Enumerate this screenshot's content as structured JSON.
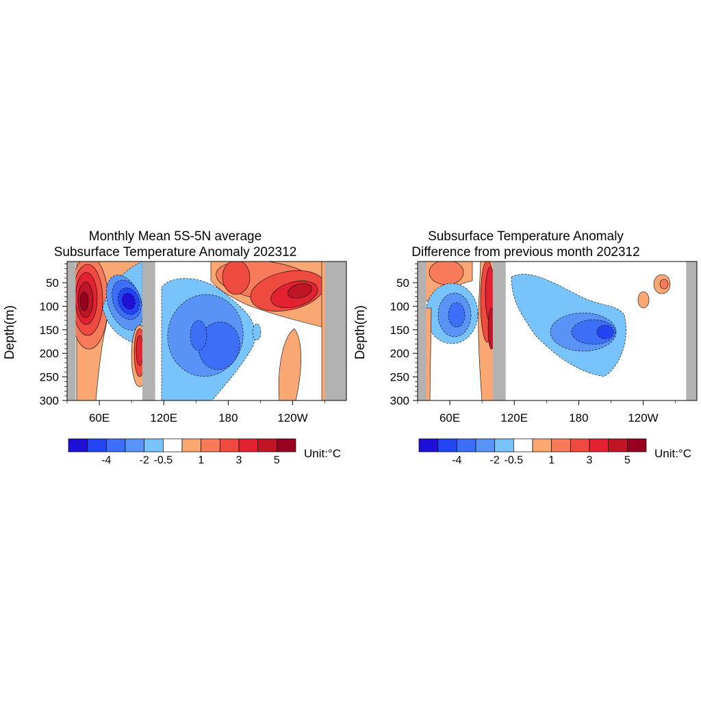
{
  "figure": {
    "panels": [
      {
        "title_line1": "Monthly Mean 5S-5N average",
        "title_line2": "Subsurface Temperature Anomaly 202312"
      },
      {
        "title_line1": "Subsurface Temperature Anomaly",
        "title_line2": "Difference from previous month 202312"
      }
    ],
    "colorbar": {
      "colors": [
        "#1f10d8",
        "#2244f2",
        "#3c6ff5",
        "#5a93f6",
        "#78c3fb",
        "#ffffff",
        "#fba774",
        "#f77a5a",
        "#ef4a40",
        "#e32231",
        "#c01527",
        "#98001f"
      ],
      "tick_labels": [
        "-4",
        "-2",
        "-0.5",
        "1",
        "3",
        "5"
      ],
      "unit_label": "Unit:°C"
    }
  },
  "chart_data": [
    {
      "type": "heatmap",
      "title": "Monthly Mean 5S-5N average Subsurface Temperature Anomaly 202312",
      "ylabel": "Depth(m)",
      "xlabel": "",
      "x_ticklabels": [
        "60E",
        "120E",
        "180",
        "120W"
      ],
      "x_ticks_deg_east": [
        60,
        120,
        180,
        240
      ],
      "xlim_deg_east": [
        30,
        290
      ],
      "y_ticklabels": [
        "50",
        "100",
        "150",
        "200",
        "250",
        "300"
      ],
      "y_ticks": [
        50,
        100,
        150,
        200,
        250,
        300
      ],
      "ylim": [
        300,
        5
      ],
      "units": "°C",
      "land_mask_lon_deg_east": [
        [
          30,
          38
        ],
        [
          100,
          112
        ],
        [
          270,
          290
        ]
      ],
      "anomaly_features": [
        {
          "lon_center": 50,
          "depth_center": 100,
          "value": 5,
          "sign": "warm"
        },
        {
          "lon_center": 85,
          "depth_center": 90,
          "value": -4,
          "sign": "cold"
        },
        {
          "lon_center": 160,
          "depth_center": 180,
          "value": -2,
          "sign": "cold"
        },
        {
          "lon_center": 190,
          "depth_center": 40,
          "value": 2,
          "sign": "warm"
        },
        {
          "lon_center": 245,
          "depth_center": 80,
          "value": 4,
          "sign": "warm"
        }
      ]
    },
    {
      "type": "heatmap",
      "title": "Subsurface Temperature Anomaly Difference from previous month 202312",
      "ylabel": "Depth(m)",
      "xlabel": "",
      "x_ticklabels": [
        "60E",
        "120E",
        "180",
        "120W"
      ],
      "x_ticks_deg_east": [
        60,
        120,
        180,
        240
      ],
      "xlim_deg_east": [
        30,
        290
      ],
      "y_ticklabels": [
        "50",
        "100",
        "150",
        "200",
        "250",
        "300"
      ],
      "y_ticks": [
        50,
        100,
        150,
        200,
        250,
        300
      ],
      "ylim": [
        300,
        5
      ],
      "units": "°C",
      "land_mask_lon_deg_east": [
        [
          30,
          38
        ],
        [
          100,
          112
        ],
        [
          280,
          290
        ]
      ],
      "anomaly_features": [
        {
          "lon_center": 55,
          "depth_center": 40,
          "value": 1,
          "sign": "warm"
        },
        {
          "lon_center": 60,
          "depth_center": 130,
          "value": -2,
          "sign": "cold"
        },
        {
          "lon_center": 95,
          "depth_center": 120,
          "value": 3,
          "sign": "warm"
        },
        {
          "lon_center": 200,
          "depth_center": 150,
          "value": -3,
          "sign": "cold"
        },
        {
          "lon_center": 255,
          "depth_center": 50,
          "value": 1,
          "sign": "warm"
        }
      ]
    }
  ]
}
